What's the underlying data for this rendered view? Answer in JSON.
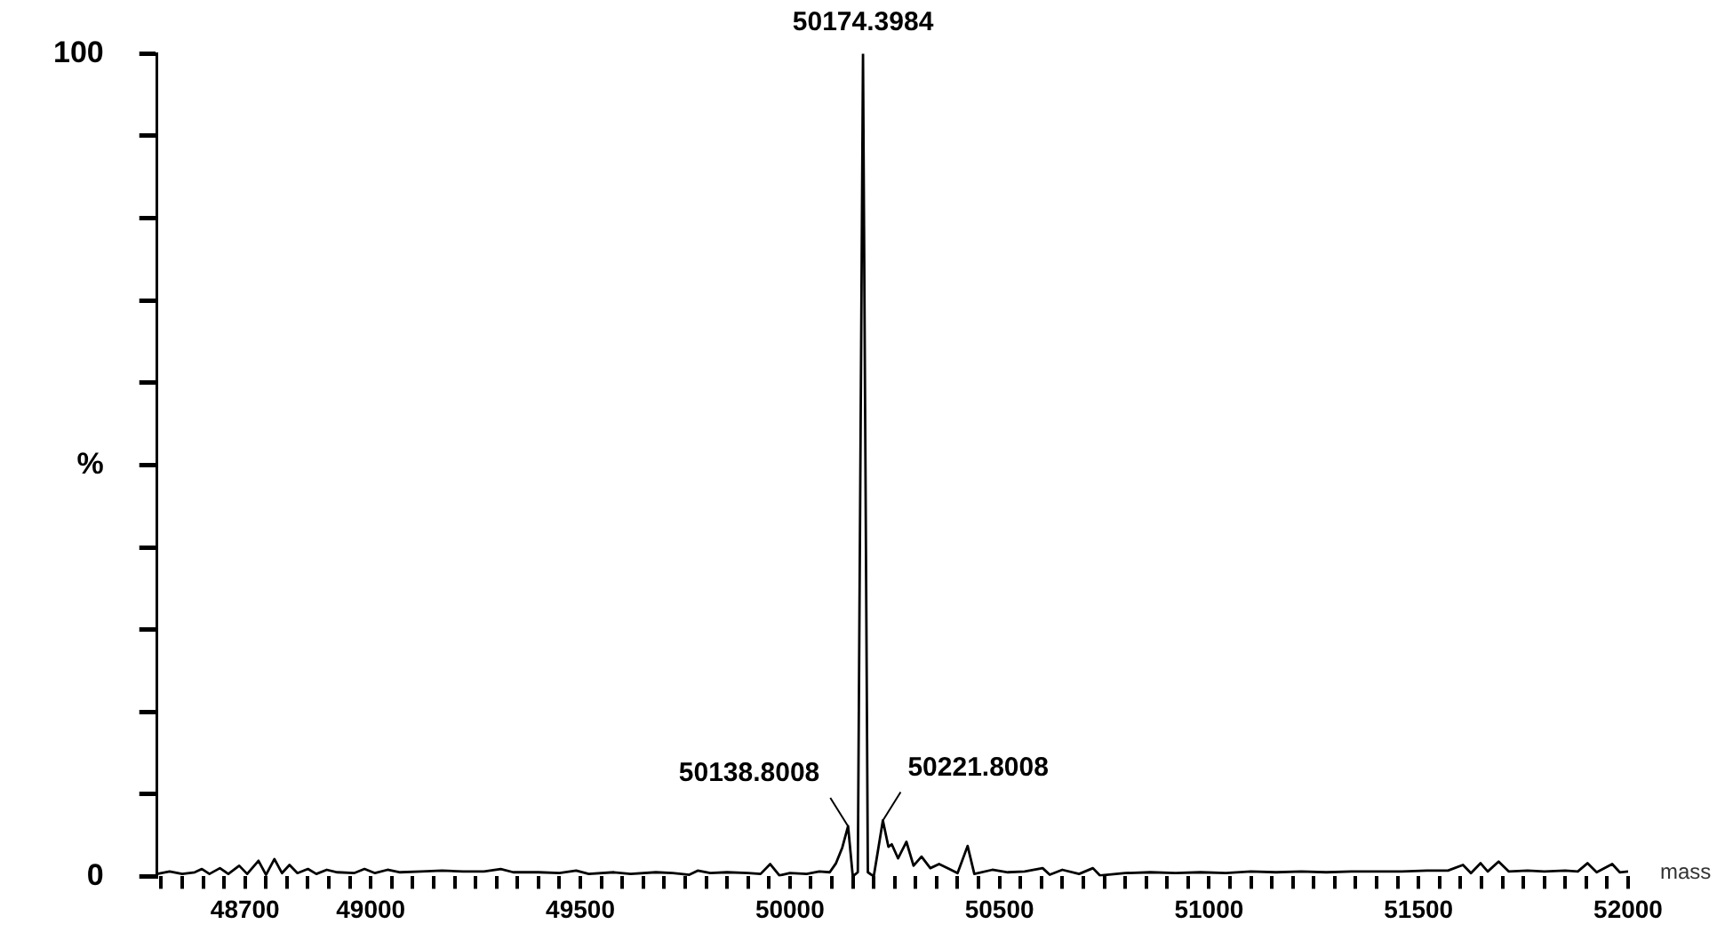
{
  "chart_data": {
    "type": "line",
    "xlabel": "mass",
    "color": "#000000",
    "marker": "none",
    "line_style": "solid",
    "legend": false,
    "grid": false,
    "x": [
      48490,
      48520,
      48550,
      48580,
      48597,
      48615,
      48640,
      48660,
      48686,
      48705,
      48732,
      48750,
      48770,
      48788,
      48806,
      48825,
      48850,
      48870,
      48895,
      48920,
      48960,
      48985,
      49010,
      49040,
      49070,
      49120,
      49170,
      49220,
      49270,
      49310,
      49340,
      49400,
      49450,
      49490,
      49520,
      49580,
      49620,
      49680,
      49720,
      49760,
      49780,
      49810,
      49850,
      49900,
      49930,
      49953,
      49975,
      50000,
      50040,
      50070,
      50095,
      50110,
      50125,
      50138.8008,
      50150,
      50162,
      50174.3984,
      50186,
      50200,
      50221.8008,
      50235,
      50243,
      50258,
      50278,
      50295,
      50314,
      50335,
      50356,
      50380,
      50400,
      50424,
      50440,
      50483,
      50520,
      50560,
      50603,
      50620,
      50650,
      50690,
      50723,
      50740,
      50800,
      50860,
      50920,
      50980,
      51040,
      51100,
      51160,
      51220,
      51280,
      51340,
      51400,
      51460,
      51520,
      51570,
      51606,
      51625,
      51648,
      51665,
      51691,
      51715,
      51760,
      51800,
      51850,
      51880,
      51903,
      51925,
      51962,
      51980,
      52000
    ],
    "values": [
      0.3,
      0.6,
      0.3,
      0.5,
      0.9,
      0.3,
      1.0,
      0.3,
      1.3,
      0.3,
      1.9,
      0.2,
      2.1,
      0.4,
      1.4,
      0.4,
      0.9,
      0.3,
      0.8,
      0.5,
      0.4,
      0.9,
      0.4,
      0.8,
      0.5,
      0.6,
      0.7,
      0.6,
      0.6,
      0.9,
      0.5,
      0.5,
      0.4,
      0.7,
      0.3,
      0.5,
      0.3,
      0.5,
      0.4,
      0.2,
      0.7,
      0.4,
      0.5,
      0.4,
      0.3,
      1.5,
      0.1,
      0.4,
      0.3,
      0.6,
      0.5,
      1.6,
      3.5,
      6.1,
      0,
      0.5,
      100,
      0.5,
      0,
      6.8,
      3.6,
      3.9,
      2.2,
      4.2,
      1.3,
      2.4,
      1.0,
      1.5,
      0.9,
      0.4,
      3.7,
      0.3,
      0.8,
      0.5,
      0.6,
      1.0,
      0.2,
      0.8,
      0.3,
      1.0,
      0.1,
      0.4,
      0.5,
      0.4,
      0.5,
      0.4,
      0.6,
      0.5,
      0.6,
      0.5,
      0.6,
      0.6,
      0.6,
      0.7,
      0.7,
      1.4,
      0.4,
      1.6,
      0.6,
      1.8,
      0.6,
      0.7,
      0.6,
      0.7,
      0.6,
      1.6,
      0.5,
      1.5,
      0.5,
      0.6
    ],
    "xlim": [
      48490,
      52000
    ],
    "xticks": [
      {
        "value": 48500,
        "label": null
      },
      {
        "value": 48550,
        "label": null
      },
      {
        "value": 48600,
        "label": null
      },
      {
        "value": 48650,
        "label": null
      },
      48700,
      {
        "value": 48750,
        "label": null
      },
      {
        "value": 48800,
        "label": null
      },
      {
        "value": 48850,
        "label": null
      },
      {
        "value": 48900,
        "label": null
      },
      {
        "value": 48950,
        "label": null
      },
      49000,
      {
        "value": 49050,
        "label": null
      },
      {
        "value": 49100,
        "label": null
      },
      {
        "value": 49150,
        "label": null
      },
      {
        "value": 49200,
        "label": null
      },
      {
        "value": 49250,
        "label": null
      },
      {
        "value": 49300,
        "label": null
      },
      {
        "value": 49350,
        "label": null
      },
      {
        "value": 49400,
        "label": null
      },
      {
        "value": 49450,
        "label": null
      },
      49500,
      {
        "value": 49550,
        "label": null
      },
      {
        "value": 49600,
        "label": null
      },
      {
        "value": 49650,
        "label": null
      },
      {
        "value": 49700,
        "label": null
      },
      {
        "value": 49750,
        "label": null
      },
      {
        "value": 49800,
        "label": null
      },
      {
        "value": 49850,
        "label": null
      },
      {
        "value": 49900,
        "label": null
      },
      {
        "value": 49950,
        "label": null
      },
      50000,
      {
        "value": 50050,
        "label": null
      },
      {
        "value": 50100,
        "label": null
      },
      {
        "value": 50150,
        "label": null
      },
      {
        "value": 50200,
        "label": null
      },
      {
        "value": 50250,
        "label": null
      },
      {
        "value": 50300,
        "label": null
      },
      {
        "value": 50350,
        "label": null
      },
      {
        "value": 50400,
        "label": null
      },
      {
        "value": 50450,
        "label": null
      },
      50500,
      {
        "value": 50550,
        "label": null
      },
      {
        "value": 50600,
        "label": null
      },
      {
        "value": 50650,
        "label": null
      },
      {
        "value": 50700,
        "label": null
      },
      {
        "value": 50750,
        "label": null
      },
      {
        "value": 50800,
        "label": null
      },
      {
        "value": 50850,
        "label": null
      },
      {
        "value": 50900,
        "label": null
      },
      {
        "value": 50950,
        "label": null
      },
      51000,
      {
        "value": 51050,
        "label": null
      },
      {
        "value": 51100,
        "label": null
      },
      {
        "value": 51150,
        "label": null
      },
      {
        "value": 51200,
        "label": null
      },
      {
        "value": 51250,
        "label": null
      },
      {
        "value": 51300,
        "label": null
      },
      {
        "value": 51350,
        "label": null
      },
      {
        "value": 51400,
        "label": null
      },
      {
        "value": 51450,
        "label": null
      },
      51500,
      {
        "value": 51550,
        "label": null
      },
      {
        "value": 51600,
        "label": null
      },
      {
        "value": 51650,
        "label": null
      },
      {
        "value": 51700,
        "label": null
      },
      {
        "value": 51750,
        "label": null
      },
      {
        "value": 51800,
        "label": null
      },
      {
        "value": 51850,
        "label": null
      },
      {
        "value": 51900,
        "label": null
      },
      {
        "value": 51950,
        "label": null
      },
      52000
    ],
    "ylim": [
      0,
      100
    ],
    "yticks": [
      0,
      {
        "value": 10,
        "label": null
      },
      {
        "value": 20,
        "label": null
      },
      {
        "value": 30,
        "label": null
      },
      {
        "value": 40,
        "label": null
      },
      {
        "value": 50,
        "label": "%"
      },
      {
        "value": 60,
        "label": null
      },
      {
        "value": 70,
        "label": null
      },
      {
        "value": 80,
        "label": null
      },
      {
        "value": 90,
        "label": null
      },
      100
    ],
    "annotations": [
      {
        "text": "50174.3984",
        "x": 50174.3984,
        "y": 100
      },
      {
        "text": "50138.8008",
        "x": 50138.8008,
        "y": 6.1
      },
      {
        "text": "50221.8008",
        "x": 50221.8008,
        "y": 6.8
      }
    ]
  }
}
